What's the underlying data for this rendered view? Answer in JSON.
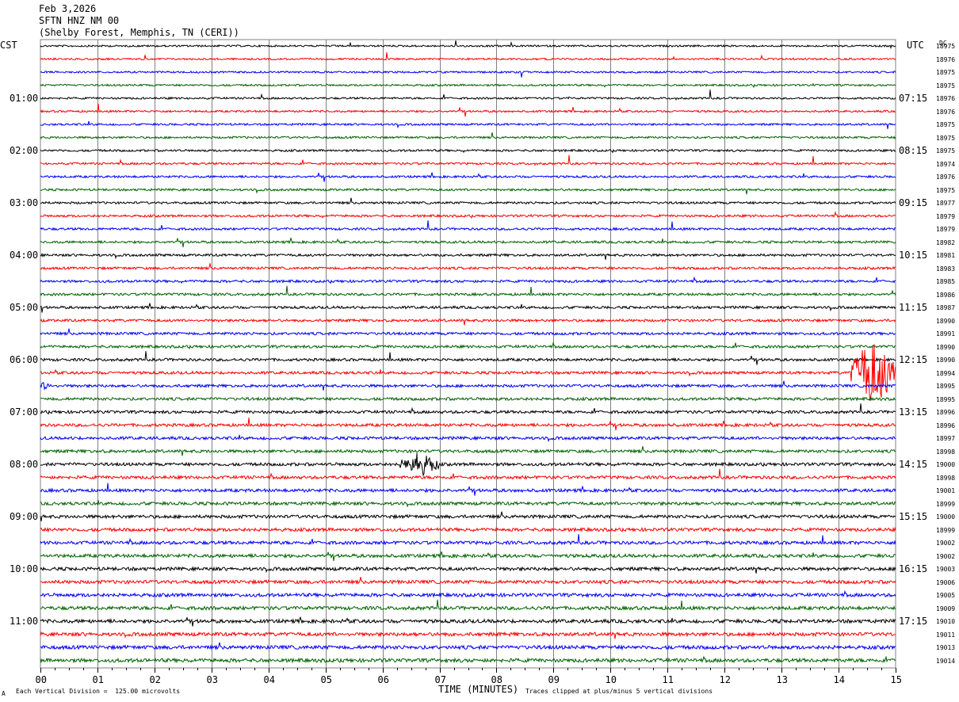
{
  "header": {
    "date": "Feb 3,2026",
    "station": "SFTN HNZ NM 00",
    "location": "(Shelby Forest, Memphis, TN (CERI))"
  },
  "left_timezone": "CST",
  "right_timezone": "UTC",
  "dc_label": "DC",
  "xlabel": "TIME (MINUTES)",
  "footer": {
    "scale_note": "Each Vertical Division =  125.00 microvolts",
    "clip_note": "Traces clipped at plus/minus 5 vertical divisions",
    "corner_mark": "A"
  },
  "colors": {
    "cycle": [
      "#000000",
      "#ff0000",
      "#0000ff",
      "#006400"
    ],
    "grid": "#808080"
  },
  "chart_data": {
    "type": "line",
    "title": "",
    "xlabel": "TIME (MINUTES)",
    "xlim": [
      0,
      15
    ],
    "x_ticks": [
      "00",
      "01",
      "02",
      "03",
      "04",
      "05",
      "06",
      "07",
      "08",
      "09",
      "10",
      "11",
      "12",
      "13",
      "14",
      "15"
    ],
    "trace_minutes": 15,
    "left_hour_labels": [
      "01:00",
      "02:00",
      "03:00",
      "04:00",
      "05:00",
      "06:00",
      "07:00",
      "08:00",
      "09:00",
      "10:00",
      "11:00"
    ],
    "right_hour_labels": [
      "07:15",
      "08:15",
      "09:15",
      "10:15",
      "11:15",
      "12:15",
      "13:15",
      "14:15",
      "15:15",
      "16:15",
      "17:15"
    ],
    "dc_offsets": [
      "18975",
      "18976",
      "18975",
      "18975",
      "18976",
      "18976",
      "18975",
      "18975",
      "18975",
      "18974",
      "18976",
      "18975",
      "18977",
      "18979",
      "18979",
      "18982",
      "18981",
      "18983",
      "18985",
      "18986",
      "18987",
      "18990",
      "18991",
      "18990",
      "18990",
      "18994",
      "18995",
      "18995",
      "18996",
      "18996",
      "18997",
      "18998",
      "19000",
      "18998",
      "19001",
      "18999",
      "19000",
      "18999",
      "19002",
      "19002",
      "19003",
      "19006",
      "19005",
      "19009",
      "19010",
      "19011",
      "19013",
      "19014"
    ],
    "events": [
      {
        "trace": 25,
        "minute_start": 14.2,
        "minute_end": 15.0,
        "amplitude": "clipped"
      },
      {
        "trace": 32,
        "minute_start": 6.3,
        "minute_end": 7.0,
        "amplitude": "large"
      },
      {
        "trace": 26,
        "minute_start": 0.0,
        "minute_end": 0.2,
        "amplitude": "moderate"
      }
    ],
    "grid": true
  }
}
